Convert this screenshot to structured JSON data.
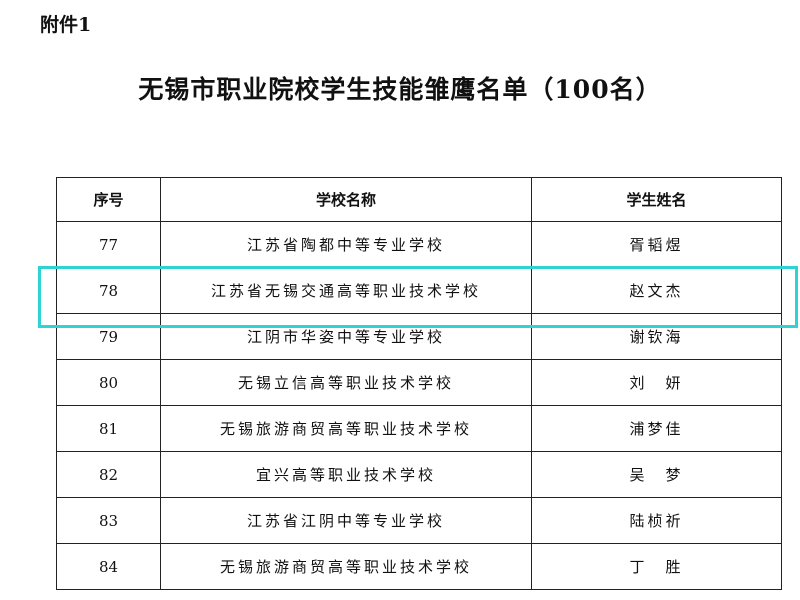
{
  "attachment_label": "附件1",
  "title": "无锡市职业院校学生技能雏鹰名单（100名）",
  "table": {
    "headers": [
      "序号",
      "学校名称",
      "学生姓名"
    ],
    "rows": [
      {
        "no": "77",
        "school": "江苏省陶都中等专业学校",
        "student": "胥韬煜"
      },
      {
        "no": "78",
        "school": "江苏省无锡交通高等职业技术学校",
        "student": "赵文杰"
      },
      {
        "no": "79",
        "school": "江阴市华姿中等专业学校",
        "student": "谢钦海"
      },
      {
        "no": "80",
        "school": "无锡立信高等职业技术学校",
        "student": "刘　妍"
      },
      {
        "no": "81",
        "school": "无锡旅游商贸高等职业技术学校",
        "student": "浦梦佳"
      },
      {
        "no": "82",
        "school": "宜兴高等职业技术学校",
        "student": "吴　梦"
      },
      {
        "no": "83",
        "school": "江苏省江阴中等专业学校",
        "student": "陆桢祈"
      },
      {
        "no": "84",
        "school": "无锡旅游商贸高等职业技术学校",
        "student": "丁　胜"
      }
    ],
    "highlighted_row": "78",
    "highlight_color": "#2fd3d3"
  }
}
